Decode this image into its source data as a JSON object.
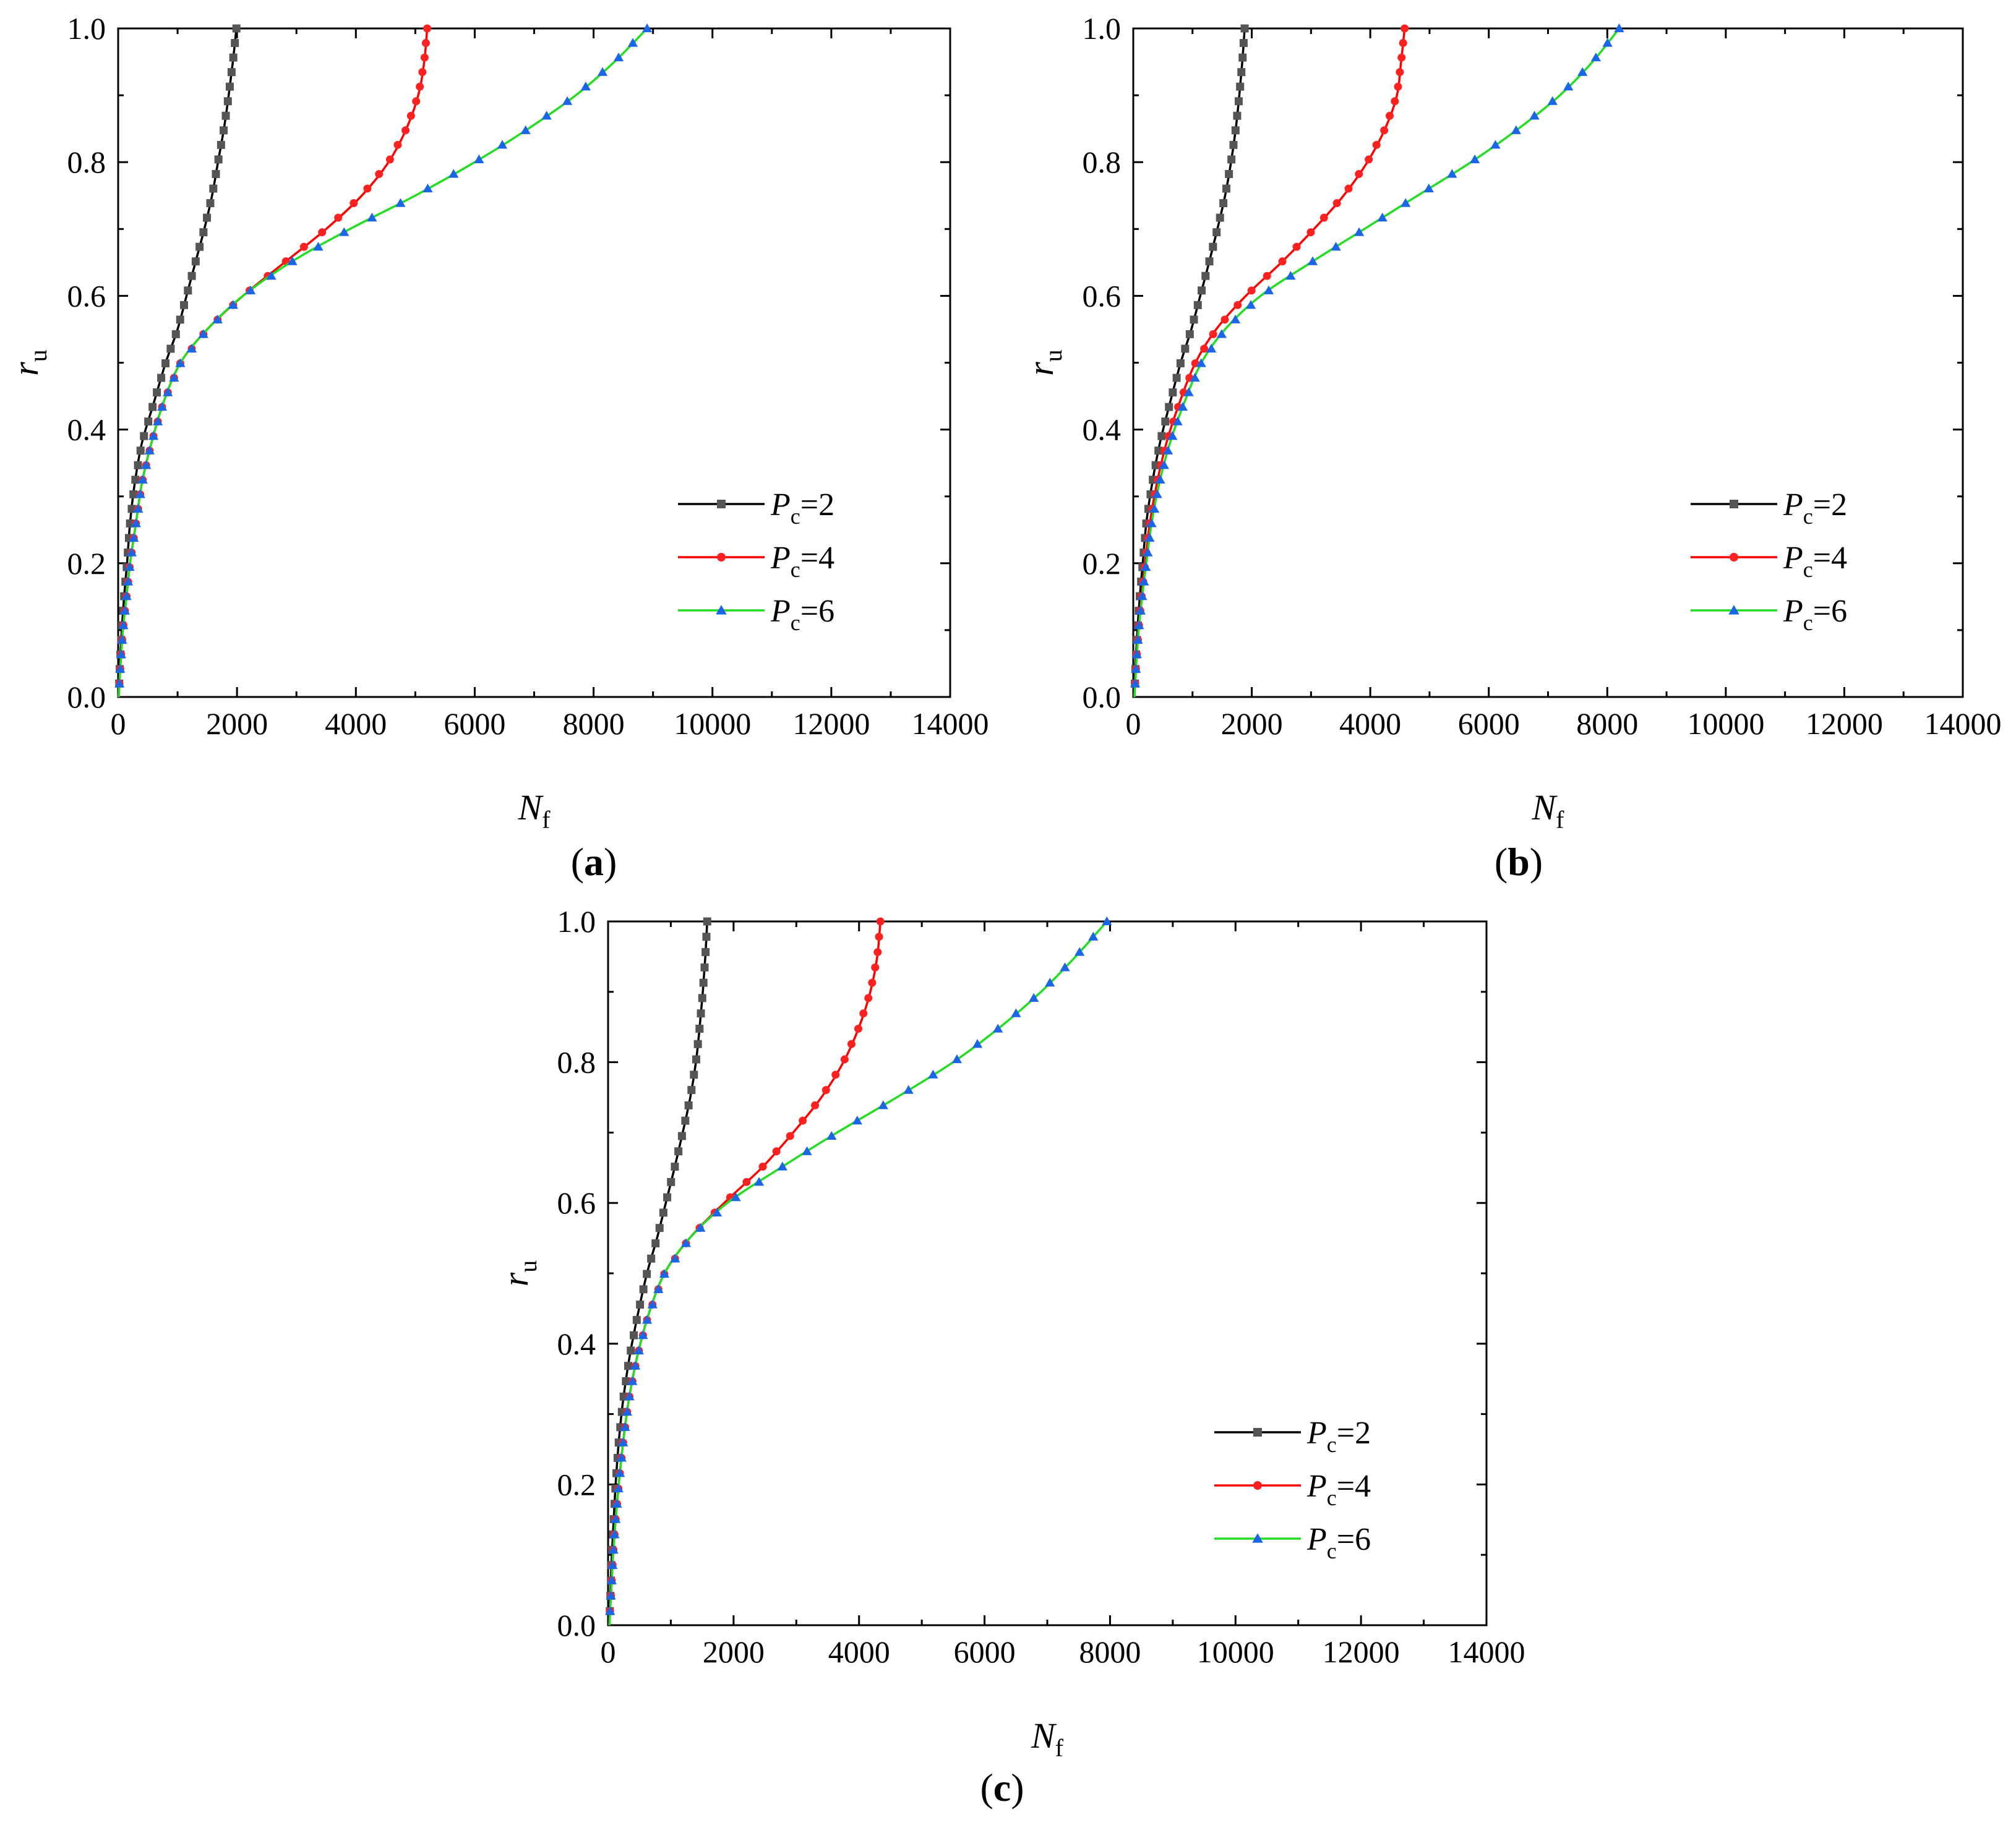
{
  "figure": {
    "panels": [
      {
        "label_open": "(",
        "label": "a",
        "label_close": ")"
      },
      {
        "label_open": "(",
        "label": "b",
        "label_close": ")"
      },
      {
        "label_open": "(",
        "label": "c",
        "label_close": ")"
      }
    ]
  },
  "chart_data": [
    {
      "type": "line",
      "panel": "a",
      "xlabel": {
        "main": "N",
        "sub": "f"
      },
      "ylabel": {
        "main": "r",
        "sub": "u"
      },
      "xlim": [
        0,
        14000
      ],
      "ylim": [
        0,
        1.0
      ],
      "xticks": [
        "0",
        "2000",
        "4000",
        "6000",
        "8000",
        "10000",
        "12000",
        "14000"
      ],
      "yticks": [
        "0.0",
        "0.2",
        "0.4",
        "0.6",
        "0.8",
        "1.0"
      ],
      "legend_position": "bottom-right",
      "series": [
        {
          "name": "P",
          "sub": "c",
          "value_text": "=2",
          "color": "#000000",
          "marker_color": "#555555",
          "marker": "square",
          "points": [
            [
              10,
              0.0
            ],
            [
              30,
              0.05
            ],
            [
              60,
              0.1
            ],
            [
              100,
              0.15
            ],
            [
              150,
              0.2
            ],
            [
              200,
              0.26
            ],
            [
              280,
              0.32
            ],
            [
              400,
              0.38
            ],
            [
              600,
              0.44
            ],
            [
              800,
              0.5
            ],
            [
              1000,
              0.55
            ],
            [
              1150,
              0.6
            ],
            [
              1300,
              0.65
            ],
            [
              1450,
              0.7
            ],
            [
              1580,
              0.75
            ],
            [
              1680,
              0.8
            ],
            [
              1780,
              0.85
            ],
            [
              1860,
              0.9
            ],
            [
              1930,
              0.95
            ],
            [
              1990,
              1.0
            ]
          ]
        },
        {
          "name": "P",
          "sub": "c",
          "value_text": "=4",
          "color": "#ff0000",
          "marker_color": "#ff2020",
          "marker": "circle",
          "points": [
            [
              10,
              0.0
            ],
            [
              40,
              0.05
            ],
            [
              80,
              0.1
            ],
            [
              140,
              0.15
            ],
            [
              200,
              0.2
            ],
            [
              300,
              0.26
            ],
            [
              400,
              0.32
            ],
            [
              560,
              0.38
            ],
            [
              760,
              0.44
            ],
            [
              1050,
              0.5
            ],
            [
              1500,
              0.55
            ],
            [
              2100,
              0.6
            ],
            [
              2800,
              0.65
            ],
            [
              3500,
              0.7
            ],
            [
              4100,
              0.75
            ],
            [
              4550,
              0.8
            ],
            [
              4850,
              0.85
            ],
            [
              5050,
              0.9
            ],
            [
              5150,
              0.95
            ],
            [
              5200,
              1.0
            ]
          ]
        },
        {
          "name": "P",
          "sub": "c",
          "value_text": "=6",
          "color": "#22dd22",
          "marker_color": "#1a66e6",
          "marker": "triangle",
          "points": [
            [
              10,
              0.0
            ],
            [
              40,
              0.05
            ],
            [
              80,
              0.1
            ],
            [
              140,
              0.15
            ],
            [
              200,
              0.2
            ],
            [
              300,
              0.26
            ],
            [
              400,
              0.32
            ],
            [
              560,
              0.38
            ],
            [
              760,
              0.44
            ],
            [
              1050,
              0.5
            ],
            [
              1500,
              0.55
            ],
            [
              2100,
              0.6
            ],
            [
              2900,
              0.65
            ],
            [
              3900,
              0.7
            ],
            [
              5000,
              0.75
            ],
            [
              6000,
              0.8
            ],
            [
              6900,
              0.85
            ],
            [
              7700,
              0.9
            ],
            [
              8350,
              0.95
            ],
            [
              8900,
              1.0
            ]
          ]
        }
      ]
    },
    {
      "type": "line",
      "panel": "b",
      "xlabel": {
        "main": "N",
        "sub": "f"
      },
      "ylabel": {
        "main": "r",
        "sub": "u"
      },
      "xlim": [
        0,
        14000
      ],
      "ylim": [
        0,
        1.0
      ],
      "xticks": [
        "0",
        "2000",
        "4000",
        "6000",
        "8000",
        "10000",
        "12000",
        "14000"
      ],
      "yticks": [
        "0.0",
        "0.2",
        "0.4",
        "0.6",
        "0.8",
        "1.0"
      ],
      "legend_position": "bottom-right",
      "series": [
        {
          "name": "P",
          "sub": "c",
          "value_text": "=2",
          "color": "#000000",
          "marker_color": "#555555",
          "marker": "square",
          "points": [
            [
              20,
              0.0
            ],
            [
              40,
              0.05
            ],
            [
              70,
              0.1
            ],
            [
              110,
              0.15
            ],
            [
              160,
              0.2
            ],
            [
              220,
              0.26
            ],
            [
              320,
              0.32
            ],
            [
              450,
              0.38
            ],
            [
              620,
              0.44
            ],
            [
              800,
              0.5
            ],
            [
              980,
              0.55
            ],
            [
              1130,
              0.6
            ],
            [
              1280,
              0.65
            ],
            [
              1420,
              0.7
            ],
            [
              1550,
              0.75
            ],
            [
              1650,
              0.8
            ],
            [
              1730,
              0.85
            ],
            [
              1790,
              0.9
            ],
            [
              1840,
              0.95
            ],
            [
              1880,
              1.0
            ]
          ]
        },
        {
          "name": "P",
          "sub": "c",
          "value_text": "=4",
          "color": "#ff0000",
          "marker_color": "#ff2020",
          "marker": "circle",
          "points": [
            [
              20,
              0.0
            ],
            [
              50,
              0.05
            ],
            [
              90,
              0.1
            ],
            [
              140,
              0.15
            ],
            [
              200,
              0.2
            ],
            [
              280,
              0.26
            ],
            [
              400,
              0.32
            ],
            [
              560,
              0.38
            ],
            [
              780,
              0.44
            ],
            [
              1050,
              0.5
            ],
            [
              1400,
              0.55
            ],
            [
              1900,
              0.6
            ],
            [
              2500,
              0.65
            ],
            [
              3050,
              0.7
            ],
            [
              3550,
              0.75
            ],
            [
              3950,
              0.8
            ],
            [
              4250,
              0.85
            ],
            [
              4450,
              0.9
            ],
            [
              4520,
              0.95
            ],
            [
              4580,
              1.0
            ]
          ]
        },
        {
          "name": "P",
          "sub": "c",
          "value_text": "=6",
          "color": "#22dd22",
          "marker_color": "#1a66e6",
          "marker": "triangle",
          "points": [
            [
              20,
              0.0
            ],
            [
              50,
              0.05
            ],
            [
              90,
              0.1
            ],
            [
              150,
              0.15
            ],
            [
              220,
              0.2
            ],
            [
              310,
              0.26
            ],
            [
              440,
              0.32
            ],
            [
              620,
              0.38
            ],
            [
              860,
              0.44
            ],
            [
              1150,
              0.5
            ],
            [
              1550,
              0.55
            ],
            [
              2150,
              0.6
            ],
            [
              3000,
              0.65
            ],
            [
              3900,
              0.7
            ],
            [
              4800,
              0.75
            ],
            [
              5700,
              0.8
            ],
            [
              6500,
              0.85
            ],
            [
              7200,
              0.9
            ],
            [
              7750,
              0.95
            ],
            [
              8200,
              1.0
            ]
          ]
        }
      ]
    },
    {
      "type": "line",
      "panel": "c",
      "xlabel": {
        "main": "N",
        "sub": "f"
      },
      "ylabel": {
        "main": "r",
        "sub": "u"
      },
      "xlim": [
        0,
        14000
      ],
      "ylim": [
        0,
        1.0
      ],
      "xticks": [
        "0",
        "2000",
        "4000",
        "6000",
        "8000",
        "10000",
        "12000",
        "14000"
      ],
      "yticks": [
        "0.0",
        "0.2",
        "0.4",
        "0.6",
        "0.8",
        "1.0"
      ],
      "legend_position": "bottom-right",
      "series": [
        {
          "name": "P",
          "sub": "c",
          "value_text": "=2",
          "color": "#000000",
          "marker_color": "#555555",
          "marker": "square",
          "points": [
            [
              20,
              0.0
            ],
            [
              40,
              0.05
            ],
            [
              60,
              0.1
            ],
            [
              90,
              0.15
            ],
            [
              120,
              0.2
            ],
            [
              170,
              0.26
            ],
            [
              240,
              0.32
            ],
            [
              340,
              0.38
            ],
            [
              470,
              0.44
            ],
            [
              620,
              0.5
            ],
            [
              780,
              0.55
            ],
            [
              920,
              0.6
            ],
            [
              1060,
              0.65
            ],
            [
              1190,
              0.7
            ],
            [
              1310,
              0.75
            ],
            [
              1400,
              0.8
            ],
            [
              1460,
              0.85
            ],
            [
              1510,
              0.9
            ],
            [
              1550,
              0.95
            ],
            [
              1580,
              1.0
            ]
          ]
        },
        {
          "name": "P",
          "sub": "c",
          "value_text": "=4",
          "color": "#ff0000",
          "marker_color": "#ff2020",
          "marker": "circle",
          "points": [
            [
              20,
              0.0
            ],
            [
              50,
              0.05
            ],
            [
              80,
              0.1
            ],
            [
              120,
              0.15
            ],
            [
              170,
              0.2
            ],
            [
              240,
              0.26
            ],
            [
              330,
              0.32
            ],
            [
              460,
              0.38
            ],
            [
              640,
              0.44
            ],
            [
              900,
              0.5
            ],
            [
              1300,
              0.55
            ],
            [
              1850,
              0.6
            ],
            [
              2450,
              0.65
            ],
            [
              2950,
              0.7
            ],
            [
              3400,
              0.75
            ],
            [
              3750,
              0.8
            ],
            [
              4000,
              0.85
            ],
            [
              4180,
              0.9
            ],
            [
              4290,
              0.95
            ],
            [
              4340,
              1.0
            ]
          ]
        },
        {
          "name": "P",
          "sub": "c",
          "value_text": "=6",
          "color": "#22dd22",
          "marker_color": "#1a66e6",
          "marker": "triangle",
          "points": [
            [
              20,
              0.0
            ],
            [
              50,
              0.05
            ],
            [
              80,
              0.1
            ],
            [
              120,
              0.15
            ],
            [
              170,
              0.2
            ],
            [
              240,
              0.26
            ],
            [
              330,
              0.32
            ],
            [
              460,
              0.38
            ],
            [
              640,
              0.44
            ],
            [
              900,
              0.5
            ],
            [
              1300,
              0.55
            ],
            [
              1900,
              0.6
            ],
            [
              2750,
              0.65
            ],
            [
              3650,
              0.7
            ],
            [
              4600,
              0.75
            ],
            [
              5500,
              0.8
            ],
            [
              6250,
              0.85
            ],
            [
              6900,
              0.9
            ],
            [
              7450,
              0.95
            ],
            [
              7950,
              1.0
            ]
          ]
        }
      ]
    }
  ]
}
